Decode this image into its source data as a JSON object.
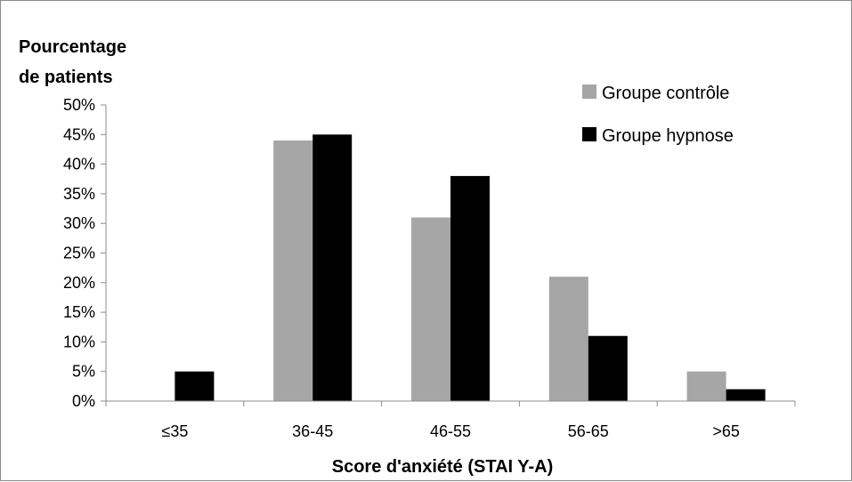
{
  "chart_data": {
    "type": "bar",
    "title": "",
    "ylabel_lines": [
      "Pourcentage",
      "de patients"
    ],
    "xlabel": "Score d'anxiété (STAI Y-A)",
    "categories": [
      "≤35",
      "36-45",
      "46-55",
      "56-65",
      ">65"
    ],
    "series": [
      {
        "name": "Groupe contrôle",
        "color": "#a6a6a6",
        "values": [
          0,
          44,
          31,
          21,
          5
        ]
      },
      {
        "name": "Groupe hypnose",
        "color": "#000000",
        "values": [
          5,
          45,
          38,
          11,
          2
        ]
      }
    ],
    "ylim": [
      0,
      50
    ],
    "ytick_step": 5,
    "ytick_format": "percent",
    "grid": false,
    "legend_position": "top-right"
  }
}
